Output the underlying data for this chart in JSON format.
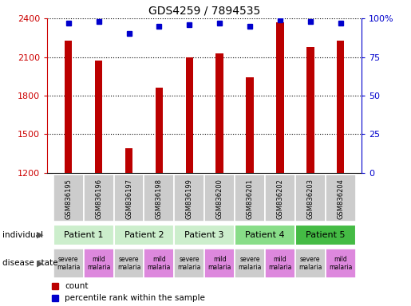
{
  "title": "GDS4259 / 7894535",
  "samples": [
    "GSM836195",
    "GSM836196",
    "GSM836197",
    "GSM836198",
    "GSM836199",
    "GSM836200",
    "GSM836201",
    "GSM836202",
    "GSM836203",
    "GSM836204"
  ],
  "counts": [
    2230,
    2075,
    1390,
    1860,
    2095,
    2130,
    1940,
    2370,
    2180,
    2230
  ],
  "percentile_ranks": [
    97,
    98,
    90,
    95,
    96,
    97,
    95,
    99,
    98,
    97
  ],
  "ylim_left": [
    1200,
    2400
  ],
  "ylim_right": [
    0,
    100
  ],
  "yticks_left": [
    1200,
    1500,
    1800,
    2100,
    2400
  ],
  "yticks_right": [
    0,
    25,
    50,
    75,
    100
  ],
  "bar_color": "#bb0000",
  "dot_color": "#0000cc",
  "grid_color": "#000000",
  "patients": [
    {
      "label": "Patient 1",
      "cols": [
        0,
        1
      ],
      "color": "#cceecc"
    },
    {
      "label": "Patient 2",
      "cols": [
        2,
        3
      ],
      "color": "#cceecc"
    },
    {
      "label": "Patient 3",
      "cols": [
        4,
        5
      ],
      "color": "#cceecc"
    },
    {
      "label": "Patient 4",
      "cols": [
        6,
        7
      ],
      "color": "#88dd88"
    },
    {
      "label": "Patient 5",
      "cols": [
        8,
        9
      ],
      "color": "#44bb44"
    }
  ],
  "disease_states": [
    {
      "label": "severe\nmalaria",
      "col": 0,
      "color": "#cccccc"
    },
    {
      "label": "mild\nmalaria",
      "col": 1,
      "color": "#dd88dd"
    },
    {
      "label": "severe\nmalaria",
      "col": 2,
      "color": "#cccccc"
    },
    {
      "label": "mild\nmalaria",
      "col": 3,
      "color": "#dd88dd"
    },
    {
      "label": "severe\nmalaria",
      "col": 4,
      "color": "#cccccc"
    },
    {
      "label": "mild\nmalaria",
      "col": 5,
      "color": "#dd88dd"
    },
    {
      "label": "severe\nmalaria",
      "col": 6,
      "color": "#cccccc"
    },
    {
      "label": "mild\nmalaria",
      "col": 7,
      "color": "#dd88dd"
    },
    {
      "label": "severe\nmalaria",
      "col": 8,
      "color": "#cccccc"
    },
    {
      "label": "mild\nmalaria",
      "col": 9,
      "color": "#dd88dd"
    }
  ],
  "legend_items": [
    {
      "label": "count",
      "color": "#bb0000"
    },
    {
      "label": "percentile rank within the sample",
      "color": "#0000cc"
    }
  ],
  "left_axis_color": "#cc0000",
  "right_axis_color": "#0000cc",
  "bg_color": "#ffffff",
  "sample_row_color": "#cccccc",
  "individual_label": "individual",
  "disease_label": "disease state",
  "bar_width": 0.25
}
